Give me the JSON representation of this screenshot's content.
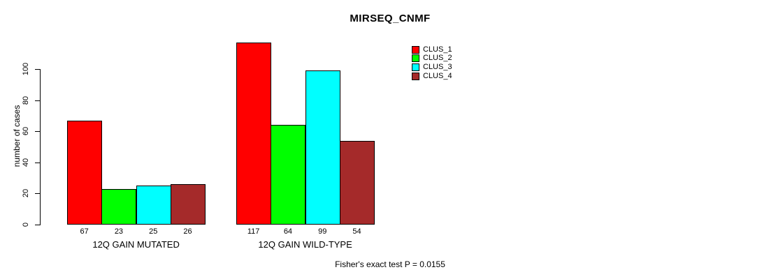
{
  "chart_data": {
    "type": "bar",
    "title": "MIRSEQ_CNMF",
    "ylabel": "number of cases",
    "xlabel": "",
    "yticks": [
      0,
      20,
      40,
      60,
      80,
      100
    ],
    "ylim": [
      0,
      117
    ],
    "grid": false,
    "legend_position": "top-right",
    "categories": [
      "12Q GAIN MUTATED",
      "12Q GAIN WILD-TYPE"
    ],
    "series": [
      {
        "name": "CLUS_1",
        "color": "#FF0000",
        "values": [
          67,
          117
        ]
      },
      {
        "name": "CLUS_2",
        "color": "#00FF00",
        "values": [
          23,
          64
        ]
      },
      {
        "name": "CLUS_3",
        "color": "#00FFFF",
        "values": [
          25,
          99
        ]
      },
      {
        "name": "CLUS_4",
        "color": "#A52A2A",
        "values": [
          26,
          54
        ]
      }
    ],
    "bar_value_labels_shown": true,
    "annotation": "Fisher's exact test P = 0.0155",
    "colors": {
      "background": "#FFFFFF",
      "axis": "#000000",
      "bar_border": "#000000",
      "text": "#000000"
    }
  }
}
